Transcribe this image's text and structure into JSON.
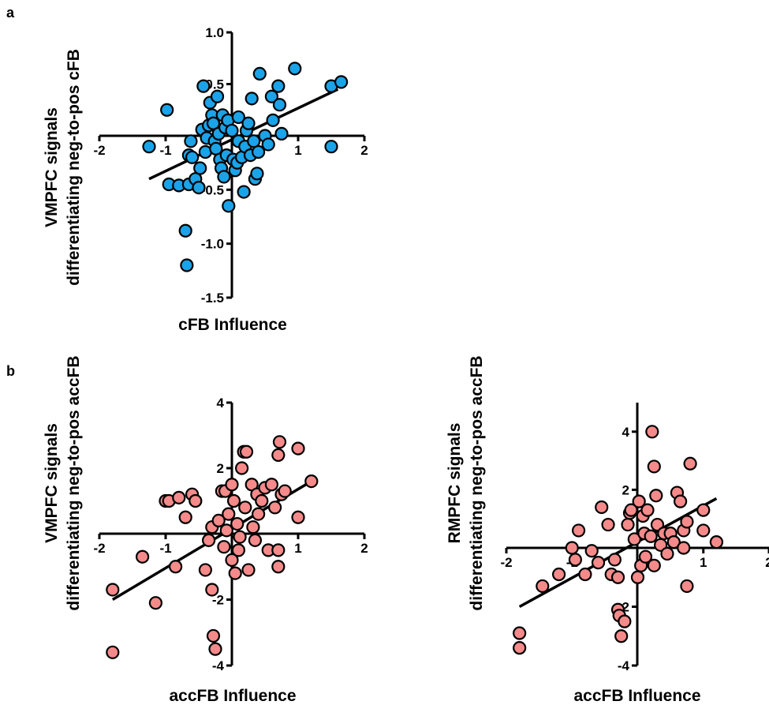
{
  "panels": [
    {
      "letter": "a"
    },
    {
      "letter": "b"
    }
  ],
  "chart_data": [
    {
      "type": "scatter",
      "panel": "a",
      "xlabel": "cFB Influence",
      "ylabel_line1": "VMPFC signals",
      "ylabel_line2": "differentiating neg-to-pos cFB",
      "xlim": [
        -2,
        2
      ],
      "ylim": [
        -1.5,
        1.0
      ],
      "xticks": [
        -2,
        -1,
        1,
        2
      ],
      "xtick_labels": [
        "-2",
        "-1",
        "1",
        "2"
      ],
      "yticks": [
        -1.5,
        -1.0,
        -0.5,
        0.5,
        1.0
      ],
      "ytick_labels": [
        "-1.5",
        "-1.0",
        "-0.5",
        "0.5",
        "1.0"
      ],
      "marker_color": "#1aa3e8",
      "fit_line": {
        "x": [
          -1.25,
          1.6
        ],
        "y": [
          -0.4,
          0.45
        ]
      },
      "points": [
        [
          -1.25,
          -0.1
        ],
        [
          -0.98,
          0.25
        ],
        [
          -0.95,
          -0.45
        ],
        [
          -0.8,
          -0.46
        ],
        [
          -0.7,
          -0.88
        ],
        [
          -0.68,
          -1.2
        ],
        [
          -0.65,
          -0.45
        ],
        [
          -0.65,
          -0.18
        ],
        [
          -0.62,
          -0.05
        ],
        [
          -0.6,
          -0.2
        ],
        [
          -0.55,
          -0.4
        ],
        [
          -0.5,
          -0.48
        ],
        [
          -0.48,
          -0.3
        ],
        [
          -0.45,
          0.06
        ],
        [
          -0.43,
          0.48
        ],
        [
          -0.4,
          -0.15
        ],
        [
          -0.38,
          -0.02
        ],
        [
          -0.35,
          0.1
        ],
        [
          -0.33,
          0.32
        ],
        [
          -0.3,
          0.2
        ],
        [
          -0.28,
          0.12
        ],
        [
          -0.26,
          -0.05
        ],
        [
          -0.24,
          -0.12
        ],
        [
          -0.22,
          0.38
        ],
        [
          -0.2,
          0.02
        ],
        [
          -0.18,
          -0.22
        ],
        [
          -0.16,
          -0.3
        ],
        [
          -0.14,
          0.2
        ],
        [
          -0.12,
          -0.38
        ],
        [
          -0.1,
          0.08
        ],
        [
          -0.08,
          -0.18
        ],
        [
          -0.06,
          0.15
        ],
        [
          -0.05,
          -0.65
        ],
        [
          0.0,
          0.05
        ],
        [
          0.02,
          -0.22
        ],
        [
          0.05,
          -0.32
        ],
        [
          0.08,
          -0.25
        ],
        [
          0.1,
          -0.05
        ],
        [
          0.1,
          0.18
        ],
        [
          0.15,
          -0.2
        ],
        [
          0.18,
          -0.52
        ],
        [
          0.2,
          -0.1
        ],
        [
          0.22,
          0.05
        ],
        [
          0.25,
          0.12
        ],
        [
          0.28,
          -0.18
        ],
        [
          0.3,
          0.36
        ],
        [
          0.33,
          -0.05
        ],
        [
          0.35,
          -0.4
        ],
        [
          0.38,
          -0.35
        ],
        [
          0.4,
          -0.15
        ],
        [
          0.42,
          0.6
        ],
        [
          0.5,
          0.0
        ],
        [
          0.55,
          -0.08
        ],
        [
          0.6,
          0.38
        ],
        [
          0.62,
          0.15
        ],
        [
          0.7,
          0.48
        ],
        [
          0.72,
          0.3
        ],
        [
          0.75,
          0.02
        ],
        [
          0.95,
          0.65
        ],
        [
          1.5,
          -0.1
        ],
        [
          1.5,
          0.48
        ],
        [
          1.65,
          0.52
        ]
      ]
    },
    {
      "type": "scatter",
      "panel": "b-left",
      "xlabel": "accFB Influence",
      "ylabel_line1": "VMPFC signals",
      "ylabel_line2": "differentiating neg-to-pos accFB",
      "xlim": [
        -2,
        2
      ],
      "ylim": [
        -4,
        4
      ],
      "xticks": [
        -2,
        -1,
        1,
        2
      ],
      "xtick_labels": [
        "-2",
        "-1",
        "1",
        "2"
      ],
      "yticks": [
        -4,
        -2,
        2,
        4
      ],
      "ytick_labels": [
        "-4",
        "-2",
        "2",
        "4"
      ],
      "marker_color": "#f58a8a",
      "fit_line": {
        "x": [
          -1.8,
          1.2
        ],
        "y": [
          -2.0,
          1.6
        ]
      },
      "points": [
        [
          -1.8,
          -3.6
        ],
        [
          -1.8,
          -1.7
        ],
        [
          -1.35,
          -0.7
        ],
        [
          -1.15,
          -2.1
        ],
        [
          -1.0,
          1.0
        ],
        [
          -0.95,
          1.0
        ],
        [
          -0.85,
          -1.0
        ],
        [
          -0.8,
          1.1
        ],
        [
          -0.7,
          0.5
        ],
        [
          -0.6,
          1.2
        ],
        [
          -0.55,
          1.0
        ],
        [
          -0.4,
          -1.1
        ],
        [
          -0.35,
          -0.2
        ],
        [
          -0.3,
          -1.7
        ],
        [
          -0.3,
          0.2
        ],
        [
          -0.28,
          -3.1
        ],
        [
          -0.25,
          -3.5
        ],
        [
          -0.2,
          0.4
        ],
        [
          -0.15,
          1.3
        ],
        [
          -0.12,
          -0.4
        ],
        [
          -0.1,
          1.3
        ],
        [
          -0.08,
          0.1
        ],
        [
          -0.05,
          0.6
        ],
        [
          0.0,
          -0.8
        ],
        [
          0.0,
          1.5
        ],
        [
          0.03,
          1.0
        ],
        [
          0.05,
          -1.2
        ],
        [
          0.08,
          0.3
        ],
        [
          0.1,
          -0.5
        ],
        [
          0.12,
          -0.1
        ],
        [
          0.15,
          2.0
        ],
        [
          0.18,
          2.5
        ],
        [
          0.2,
          0.8
        ],
        [
          0.22,
          2.5
        ],
        [
          0.25,
          -1.1
        ],
        [
          0.3,
          1.5
        ],
        [
          0.32,
          0.2
        ],
        [
          0.35,
          -0.2
        ],
        [
          0.38,
          1.2
        ],
        [
          0.4,
          0.6
        ],
        [
          0.45,
          1.0
        ],
        [
          0.5,
          1.4
        ],
        [
          0.55,
          -0.5
        ],
        [
          0.6,
          1.5
        ],
        [
          0.65,
          0.8
        ],
        [
          0.7,
          -1.0
        ],
        [
          0.7,
          -0.5
        ],
        [
          0.7,
          2.4
        ],
        [
          0.72,
          2.8
        ],
        [
          0.75,
          1.2
        ],
        [
          0.8,
          1.3
        ],
        [
          1.0,
          0.5
        ],
        [
          1.0,
          2.6
        ],
        [
          1.2,
          1.6
        ]
      ]
    },
    {
      "type": "scatter",
      "panel": "b-right",
      "xlabel": "accFB Influence",
      "ylabel_line1": "RMPFC signals",
      "ylabel_line2": "differentiating neg-to-pos accFB",
      "xlim": [
        -2,
        2
      ],
      "ylim": [
        -4,
        5
      ],
      "xticks": [
        -2,
        -1,
        1,
        2
      ],
      "xtick_labels": [
        "-2",
        "-1",
        "1",
        "2"
      ],
      "yticks": [
        -4,
        -2,
        2,
        4
      ],
      "ytick_labels": [
        "-4",
        "-2",
        "2",
        "4"
      ],
      "marker_color": "#f58a8a",
      "fit_line": {
        "x": [
          -1.8,
          1.2
        ],
        "y": [
          -2.0,
          1.7
        ]
      },
      "points": [
        [
          -1.8,
          -2.9
        ],
        [
          -1.8,
          -3.4
        ],
        [
          -1.45,
          -1.3
        ],
        [
          -1.2,
          -0.9
        ],
        [
          -1.0,
          0.0
        ],
        [
          -0.95,
          -0.4
        ],
        [
          -0.9,
          0.6
        ],
        [
          -0.8,
          -0.9
        ],
        [
          -0.7,
          -0.1
        ],
        [
          -0.6,
          -0.5
        ],
        [
          -0.55,
          1.4
        ],
        [
          -0.45,
          0.8
        ],
        [
          -0.4,
          -0.9
        ],
        [
          -0.35,
          -0.4
        ],
        [
          -0.3,
          -1.0
        ],
        [
          -0.3,
          -2.1
        ],
        [
          -0.28,
          -2.3
        ],
        [
          -0.25,
          -3.0
        ],
        [
          -0.2,
          -2.5
        ],
        [
          -0.15,
          0.8
        ],
        [
          -0.12,
          1.2
        ],
        [
          -0.1,
          1.3
        ],
        [
          -0.05,
          0.3
        ],
        [
          0.0,
          -1.0
        ],
        [
          0.02,
          1.6
        ],
        [
          0.05,
          -0.6
        ],
        [
          0.08,
          1.1
        ],
        [
          0.1,
          0.5
        ],
        [
          0.12,
          -0.3
        ],
        [
          0.15,
          1.3
        ],
        [
          0.2,
          0.4
        ],
        [
          0.22,
          4.0
        ],
        [
          0.25,
          2.8
        ],
        [
          0.25,
          -0.6
        ],
        [
          0.28,
          1.8
        ],
        [
          0.3,
          0.8
        ],
        [
          0.35,
          0.1
        ],
        [
          0.4,
          0.5
        ],
        [
          0.45,
          -0.2
        ],
        [
          0.5,
          0.5
        ],
        [
          0.55,
          0.2
        ],
        [
          0.6,
          1.9
        ],
        [
          0.65,
          1.6
        ],
        [
          0.7,
          0.6
        ],
        [
          0.7,
          0.0
        ],
        [
          0.75,
          0.9
        ],
        [
          0.75,
          -1.3
        ],
        [
          0.8,
          2.9
        ],
        [
          1.0,
          1.3
        ],
        [
          1.0,
          0.6
        ],
        [
          1.2,
          0.2
        ]
      ]
    }
  ]
}
